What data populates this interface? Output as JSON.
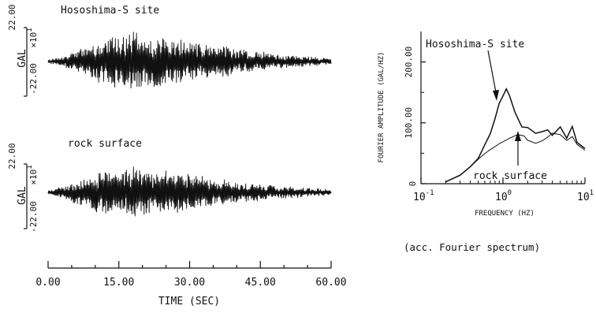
{
  "chart_data": [
    {
      "type": "line",
      "panel": "time-history-top",
      "label": "Hososhima-S site",
      "ylabel": "GAL",
      "y_multiplier": "×10",
      "y_multiplier_exp": "1",
      "ytick_labels": [
        "22.00",
        "-22.00"
      ],
      "ylim": [
        -22.0,
        22.0
      ],
      "xlim": [
        0,
        60
      ],
      "approx_peak_abs": 21,
      "envelope": {
        "x": [
          0,
          3,
          8,
          12,
          18,
          25,
          32,
          40,
          50,
          60
        ],
        "y": [
          1,
          3,
          9,
          14,
          17,
          15,
          12,
          8,
          4,
          2
        ]
      }
    },
    {
      "type": "line",
      "panel": "time-history-bottom",
      "label": "rock surface",
      "ylabel": "GAL",
      "y_multiplier": "×10",
      "y_multiplier_exp": "1",
      "ytick_labels": [
        "22.00",
        "-22.00"
      ],
      "ylim": [
        -22.0,
        22.0
      ],
      "xlim": [
        0,
        60
      ],
      "approx_peak_abs": 20,
      "envelope": {
        "x": [
          0,
          3,
          8,
          12,
          18,
          25,
          32,
          40,
          50,
          60
        ],
        "y": [
          1,
          4,
          10,
          14,
          16,
          14,
          11,
          7,
          4,
          2
        ]
      },
      "xlabel": "TIME (SEC)",
      "xtick_labels": [
        "0.00",
        "15.00",
        "30.00",
        "45.00",
        "60.00"
      ],
      "xtick_values": [
        0,
        15,
        30,
        45,
        60
      ]
    },
    {
      "type": "line",
      "panel": "fourier-spectrum",
      "xscale": "log",
      "xlim": [
        0.1,
        10
      ],
      "ylim": [
        0,
        250
      ],
      "xlabel": "FREQUENCY (HZ)",
      "ylabel": "FOURIER AMPLITUDE (GAL/HZ)",
      "ytick_labels": [
        "0",
        "100.00",
        "200.00"
      ],
      "ytick_values": [
        0,
        100,
        200
      ],
      "xtick_labels": [
        {
          "base": "10",
          "exp": "-1"
        },
        {
          "base": "10",
          "exp": "0"
        },
        {
          "base": "10",
          "exp": "1"
        }
      ],
      "xtick_values": [
        0.1,
        1,
        10
      ],
      "series": [
        {
          "name": "Hososhima-S site",
          "x": [
            0.2,
            0.3,
            0.4,
            0.5,
            0.6,
            0.7,
            0.8,
            0.9,
            1.0,
            1.1,
            1.2,
            1.4,
            1.7,
            2.0,
            2.5,
            3.0,
            3.5,
            4.0,
            5.0,
            6.0,
            7.0,
            8.0,
            10.0
          ],
          "y": [
            3,
            14,
            28,
            42,
            62,
            82,
            108,
            130,
            145,
            155,
            146,
            118,
            95,
            90,
            85,
            88,
            90,
            82,
            92,
            75,
            95,
            70,
            58
          ]
        },
        {
          "name": "rock surface",
          "x": [
            0.2,
            0.3,
            0.4,
            0.5,
            0.6,
            0.7,
            0.8,
            0.9,
            1.0,
            1.2,
            1.5,
            1.8,
            2.0,
            2.5,
            3.0,
            3.5,
            4.0,
            5.0,
            6.0,
            7.0,
            8.0,
            10.0
          ],
          "y": [
            3,
            14,
            28,
            40,
            50,
            56,
            62,
            66,
            70,
            74,
            82,
            78,
            72,
            66,
            70,
            76,
            84,
            82,
            72,
            78,
            66,
            56
          ]
        }
      ],
      "annotations": [
        "Hososhima-S site",
        "rock surface"
      ]
    }
  ],
  "caption": "(acc. Fourier spectrum)"
}
